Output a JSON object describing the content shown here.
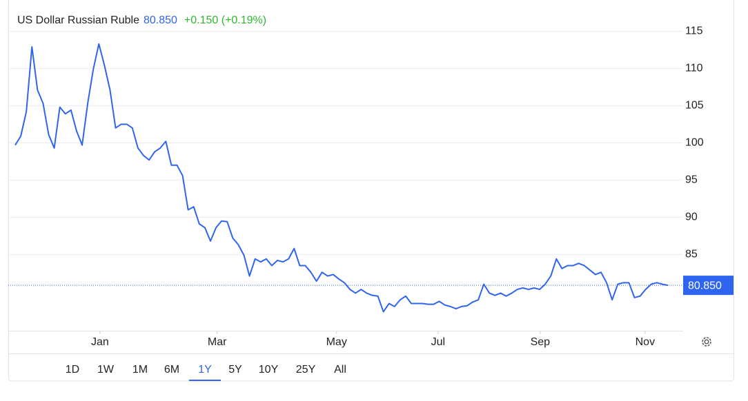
{
  "chart_data": {
    "type": "line",
    "title": "US Dollar Russian Ruble",
    "price": {
      "value": 80.85,
      "label": "80.850"
    },
    "change": "+0.150 (+0.19%)",
    "series": [
      {
        "name": "USDRUB",
        "color": "#2f64f0",
        "values": [
          99.7,
          100.9,
          104.2,
          112.9,
          107.1,
          105.3,
          101.1,
          99.3,
          104.8,
          103.9,
          104.4,
          101.6,
          99.7,
          105.3,
          109.9,
          113.3,
          110.4,
          107.1,
          102.0,
          102.5,
          102.5,
          102.0,
          99.3,
          98.3,
          97.7,
          98.8,
          99.3,
          100.2,
          97.0,
          97.0,
          95.6,
          91.0,
          91.4,
          89.1,
          88.6,
          86.8,
          88.6,
          89.5,
          89.4,
          87.2,
          86.3,
          84.9,
          82.1,
          84.4,
          84.0,
          84.4,
          83.5,
          84.2,
          84.0,
          84.4,
          85.8,
          83.5,
          83.5,
          82.6,
          81.4,
          82.6,
          82.1,
          82.3,
          81.7,
          81.2,
          80.3,
          79.8,
          80.3,
          79.8,
          79.5,
          79.4,
          77.3,
          78.4,
          78.0,
          78.9,
          79.4,
          78.4,
          78.4,
          78.4,
          78.3,
          78.3,
          78.7,
          78.2,
          78.0,
          77.7,
          78.0,
          78.1,
          78.6,
          78.9,
          81.0,
          79.8,
          79.5,
          79.8,
          79.4,
          79.8,
          80.3,
          80.5,
          80.3,
          80.5,
          80.3,
          81.0,
          82.1,
          84.4,
          83.1,
          83.5,
          83.5,
          83.8,
          83.5,
          82.9,
          82.3,
          82.6,
          81.2,
          78.9,
          81.0,
          81.2,
          81.2,
          79.2,
          79.4,
          80.3,
          81.0,
          81.2,
          81.0,
          80.85
        ]
      }
    ],
    "xlim": [
      0,
      117
    ],
    "xticks": [
      {
        "value": 15.2,
        "label": "Jan"
      },
      {
        "value": 36.2,
        "label": "Mar"
      },
      {
        "value": 57.6,
        "label": "May"
      },
      {
        "value": 75.8,
        "label": "Jul"
      },
      {
        "value": 94.1,
        "label": "Sep"
      },
      {
        "value": 112.9,
        "label": "Nov"
      }
    ],
    "ylim": [
      74.7,
      119.2
    ],
    "yticks": [
      85,
      90,
      95,
      100,
      105,
      110,
      115
    ],
    "grid": true,
    "ranges": [
      "1D",
      "1W",
      "1M",
      "6M",
      "1Y",
      "5Y",
      "10Y",
      "25Y",
      "All"
    ],
    "selected_range": "1Y"
  }
}
